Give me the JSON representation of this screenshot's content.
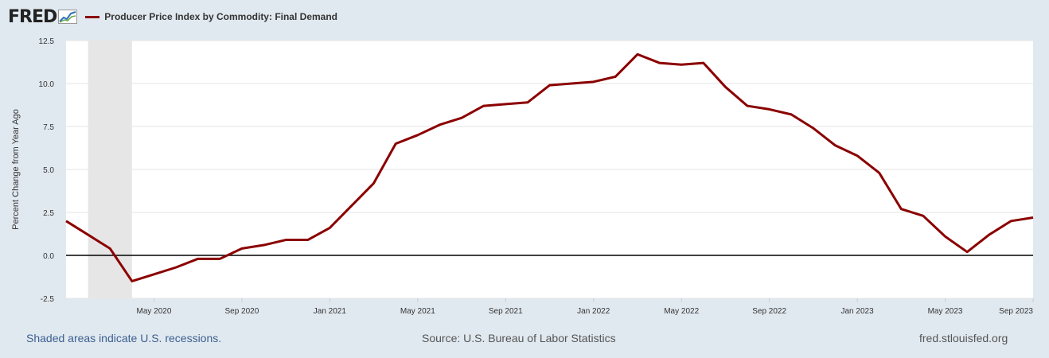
{
  "header": {
    "logo_text": "FRED",
    "legend_label": "Producer Price Index by Commodity: Final Demand",
    "series_color": "#8b0000"
  },
  "footer": {
    "recession_note": "Shaded areas indicate U.S. recessions.",
    "source": "Source: U.S. Bureau of Labor Statistics",
    "site": "fred.stlouisfed.org"
  },
  "chart_data": {
    "type": "line",
    "title": "Producer Price Index by Commodity: Final Demand",
    "ylabel": "Percent Change from Year Ago",
    "xlabel": "",
    "ylim": [
      -2.5,
      12.5
    ],
    "yticks": [
      "12.5",
      "10.0",
      "7.5",
      "5.0",
      "2.5",
      "0.0",
      "-2.5"
    ],
    "ytick_values": [
      12.5,
      10.0,
      7.5,
      5.0,
      2.5,
      0.0,
      -2.5
    ],
    "xtick_labels": [
      "May 2020",
      "Sep 2020",
      "Jan 2021",
      "May 2021",
      "Sep 2021",
      "Jan 2022",
      "May 2022",
      "Sep 2022",
      "Jan 2023",
      "May 2023",
      "Sep 2023"
    ],
    "xtick_index": [
      4,
      8,
      12,
      16,
      20,
      24,
      28,
      32,
      36,
      40,
      44
    ],
    "x_range_months": [
      0,
      44
    ],
    "recessions": [
      [
        1,
        3
      ]
    ],
    "series": [
      {
        "name": "Producer Price Index by Commodity: Final Demand",
        "months": [
          "Jan 2020",
          "Feb 2020",
          "Mar 2020",
          "Apr 2020",
          "May 2020",
          "Jun 2020",
          "Jul 2020",
          "Aug 2020",
          "Sep 2020",
          "Oct 2020",
          "Nov 2020",
          "Dec 2020",
          "Jan 2021",
          "Feb 2021",
          "Mar 2021",
          "Apr 2021",
          "May 2021",
          "Jun 2021",
          "Jul 2021",
          "Aug 2021",
          "Sep 2021",
          "Oct 2021",
          "Nov 2021",
          "Dec 2021",
          "Jan 2022",
          "Feb 2022",
          "Mar 2022",
          "Apr 2022",
          "May 2022",
          "Jun 2022",
          "Jul 2022",
          "Aug 2022",
          "Sep 2022",
          "Oct 2022",
          "Nov 2022",
          "Dec 2022",
          "Jan 2023",
          "Feb 2023",
          "Mar 2023",
          "Apr 2023",
          "May 2023",
          "Jun 2023",
          "Jul 2023",
          "Aug 2023",
          "Sep 2023"
        ],
        "values": [
          2.0,
          1.2,
          0.4,
          -1.5,
          -1.1,
          -0.7,
          -0.2,
          -0.2,
          0.4,
          0.6,
          0.9,
          0.9,
          1.6,
          2.9,
          4.2,
          6.5,
          7.0,
          7.6,
          8.0,
          8.7,
          8.8,
          8.9,
          9.9,
          10.0,
          10.1,
          10.4,
          11.7,
          11.2,
          11.1,
          11.2,
          9.8,
          8.7,
          8.5,
          8.2,
          7.4,
          6.4,
          5.8,
          4.8,
          2.7,
          2.3,
          1.1,
          0.2,
          1.2,
          2.0,
          2.2
        ]
      }
    ]
  }
}
